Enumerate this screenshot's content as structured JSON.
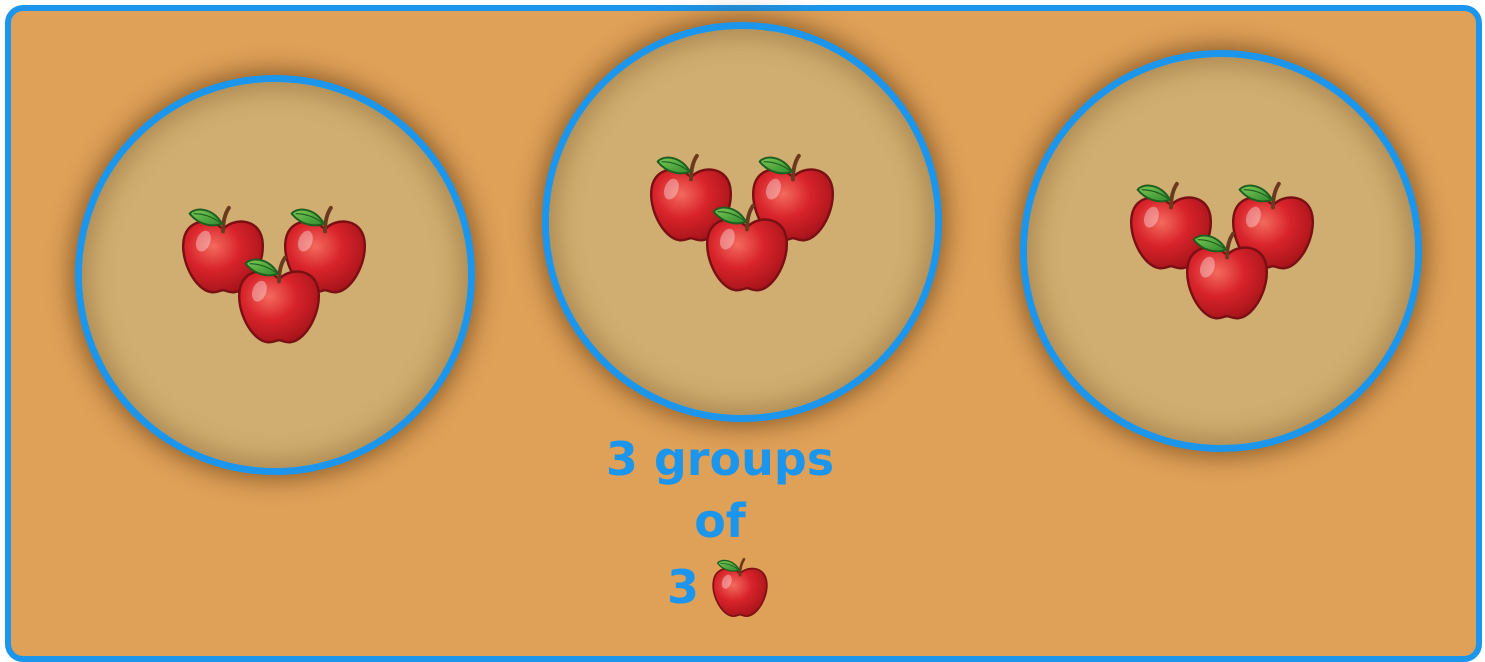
{
  "caption": {
    "line1": "3 groups",
    "line2": "of",
    "line3_number": "3",
    "line3_icon": "apple-icon"
  },
  "groups": [
    {
      "name": "group-1",
      "apple_count": 3,
      "icon": "apple-icon"
    },
    {
      "name": "group-2",
      "apple_count": 3,
      "icon": "apple-icon"
    },
    {
      "name": "group-3",
      "apple_count": 3,
      "icon": "apple-icon"
    }
  ],
  "colors": {
    "board": "#DFA058",
    "border": "#1C96EC",
    "plate": "#D0AE71",
    "apple": "#D8232A",
    "leaf": "#3FA33A",
    "text": "#1C96EC"
  }
}
